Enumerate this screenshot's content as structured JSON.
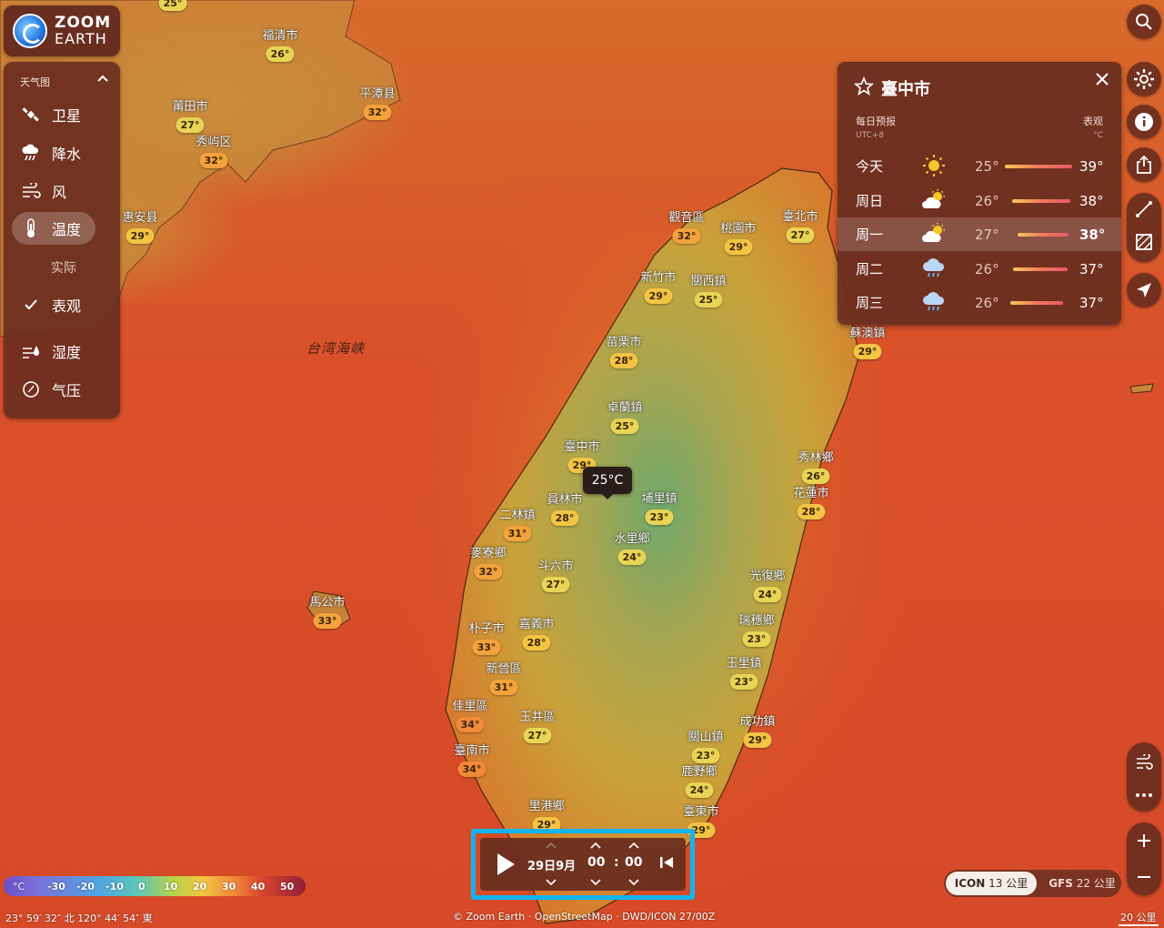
{
  "logo": {
    "line1": "ZOOM",
    "line2": "EARTH"
  },
  "layers": {
    "header": "天气图",
    "items": [
      {
        "label": "卫星",
        "icon": "satellite-icon"
      },
      {
        "label": "降水",
        "icon": "rain-cloud-icon"
      },
      {
        "label": "风",
        "icon": "wind-icon"
      },
      {
        "label": "温度",
        "icon": "thermometer-icon"
      },
      {
        "label": "湿度",
        "icon": "humidity-icon"
      },
      {
        "label": "气压",
        "icon": "pressure-icon"
      }
    ],
    "sub_actual": "实际",
    "sub_feels": "表观"
  },
  "sea_label": "台湾海峡",
  "cities": [
    {
      "name": "",
      "temp": "25°"
    },
    {
      "name": "福清市",
      "temp": "26°"
    },
    {
      "name": "平潭县",
      "temp": "32°"
    },
    {
      "name": "莆田市",
      "temp": "27°"
    },
    {
      "name": "秀屿区",
      "temp": "32°"
    },
    {
      "name": "惠安县",
      "temp": "29°"
    },
    {
      "name": "觀音區",
      "temp": "32°"
    },
    {
      "name": "桃園市",
      "temp": "29°"
    },
    {
      "name": "臺北市",
      "temp": "27°"
    },
    {
      "name": "新竹市",
      "temp": "29°"
    },
    {
      "name": "關西鎮",
      "temp": "25°"
    },
    {
      "name": "蘇澳鎮",
      "temp": "29°"
    },
    {
      "name": "苗栗市",
      "temp": "28°"
    },
    {
      "name": "卓蘭鎮",
      "temp": "25°"
    },
    {
      "name": "臺中市",
      "temp": "29°"
    },
    {
      "name": "秀林鄉",
      "temp": "26°"
    },
    {
      "name": "員林市",
      "temp": "28°"
    },
    {
      "name": "埔里鎮",
      "temp": "23°"
    },
    {
      "name": "花蓮市",
      "temp": "28°"
    },
    {
      "name": "二林鎮",
      "temp": "31°"
    },
    {
      "name": "水里鄉",
      "temp": "24°"
    },
    {
      "name": "麥寮鄉",
      "temp": "32°"
    },
    {
      "name": "斗六市",
      "temp": "27°"
    },
    {
      "name": "光復鄉",
      "temp": "24°"
    },
    {
      "name": "馬公市",
      "temp": "33°"
    },
    {
      "name": "瑞穗鄉",
      "temp": "23°"
    },
    {
      "name": "朴子市",
      "temp": "33°"
    },
    {
      "name": "嘉義市",
      "temp": "28°"
    },
    {
      "name": "玉里鎮",
      "temp": "23°"
    },
    {
      "name": "新營區",
      "temp": "31°"
    },
    {
      "name": "佳里區",
      "temp": "34°"
    },
    {
      "name": "玉井區",
      "temp": "27°"
    },
    {
      "name": "成功鎮",
      "temp": "29°"
    },
    {
      "name": "關山鎮",
      "temp": "23°"
    },
    {
      "name": "臺南市",
      "temp": "34°"
    },
    {
      "name": "鹿野鄉",
      "temp": "24°"
    },
    {
      "name": "里港鄉",
      "temp": "29°"
    },
    {
      "name": "臺東市",
      "temp": "29°"
    }
  ],
  "tooltip": "25°C",
  "forecast": {
    "city": "臺中市",
    "daily_label": "每日预报",
    "tz": "UTC+8",
    "feels_label": "表观",
    "unit": "°C",
    "rows": [
      {
        "day": "今天",
        "icon": "sun-icon",
        "lo": "25°",
        "hi": "39°"
      },
      {
        "day": "周日",
        "icon": "partly-sunny-icon",
        "lo": "26°",
        "hi": "38°"
      },
      {
        "day": "周一",
        "icon": "partly-sunny-icon",
        "lo": "27°",
        "hi": "38°"
      },
      {
        "day": "周二",
        "icon": "rain-icon",
        "lo": "26°",
        "hi": "37°"
      },
      {
        "day": "周三",
        "icon": "rain-icon",
        "lo": "26°",
        "hi": "37°"
      }
    ]
  },
  "timeline": {
    "date": "29日9月",
    "hour": "00",
    "colon": ":",
    "minute": "00"
  },
  "legend": {
    "unit": "°C",
    "ticks": [
      "-30",
      "-20",
      "-10",
      "0",
      "10",
      "20",
      "30",
      "40",
      "50"
    ]
  },
  "coords": "23° 59′ 32″ 北   120° 44′ 54″ 東",
  "attribution": "© Zoom Earth · OpenStreetMap · DWD/ICON 27/00Z",
  "models": {
    "m1_name": "ICON",
    "m1_res": "13 公里",
    "m2_name": "GFS",
    "m2_res": "22 公里"
  },
  "scale": "20 公里"
}
